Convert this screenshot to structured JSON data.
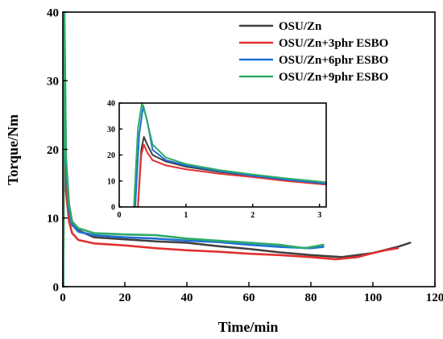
{
  "chart_data": {
    "type": "line",
    "title": "",
    "xlabel": "Time/min",
    "ylabel": "Torque/Nm",
    "xlim": [
      0,
      120
    ],
    "ylim": [
      0,
      40
    ],
    "xticks": [
      0,
      20,
      40,
      60,
      80,
      100,
      120
    ],
    "yticks": [
      0,
      10,
      20,
      30,
      40
    ],
    "legend_position": "top-right",
    "series": [
      {
        "name": "OSU/Zn",
        "color": "#404040",
        "points": [
          [
            0.15,
            0
          ],
          [
            0.3,
            18
          ],
          [
            0.5,
            20
          ],
          [
            1,
            15
          ],
          [
            2,
            11
          ],
          [
            3,
            9
          ],
          [
            5,
            8.2
          ],
          [
            10,
            7.2
          ],
          [
            20,
            6.9
          ],
          [
            30,
            6.6
          ],
          [
            40,
            6.4
          ],
          [
            50,
            5.9
          ],
          [
            60,
            5.5
          ],
          [
            70,
            5.0
          ],
          [
            80,
            4.6
          ],
          [
            90,
            4.3
          ],
          [
            100,
            4.9
          ],
          [
            108,
            5.8
          ],
          [
            112,
            6.4
          ]
        ]
      },
      {
        "name": "OSU/Zn+3phr ESBO",
        "color": "#e03030",
        "points": [
          [
            0.15,
            0
          ],
          [
            0.3,
            16
          ],
          [
            0.5,
            19
          ],
          [
            1,
            14
          ],
          [
            2,
            9.5
          ],
          [
            3,
            7.8
          ],
          [
            5,
            6.8
          ],
          [
            10,
            6.3
          ],
          [
            20,
            6.0
          ],
          [
            30,
            5.6
          ],
          [
            40,
            5.3
          ],
          [
            50,
            5.1
          ],
          [
            60,
            4.8
          ],
          [
            70,
            4.6
          ],
          [
            80,
            4.3
          ],
          [
            88,
            4.0
          ],
          [
            95,
            4.3
          ],
          [
            100,
            4.9
          ],
          [
            104,
            5.3
          ],
          [
            108,
            5.6
          ]
        ]
      },
      {
        "name": "OSU/Zn+6phr ESBO",
        "color": "#1f6fd6",
        "points": [
          [
            0.15,
            0
          ],
          [
            0.3,
            22
          ],
          [
            0.5,
            38
          ],
          [
            1,
            18
          ],
          [
            2,
            11
          ],
          [
            3,
            9
          ],
          [
            5,
            8
          ],
          [
            10,
            7.5
          ],
          [
            20,
            7.2
          ],
          [
            30,
            7.0
          ],
          [
            40,
            6.7
          ],
          [
            50,
            6.5
          ],
          [
            60,
            6.1
          ],
          [
            70,
            5.8
          ],
          [
            80,
            5.6
          ],
          [
            84,
            5.8
          ]
        ]
      },
      {
        "name": "OSU/Zn+9phr ESBO",
        "color": "#2eaa66",
        "points": [
          [
            0.15,
            0
          ],
          [
            0.3,
            25
          ],
          [
            0.5,
            40
          ],
          [
            1,
            19
          ],
          [
            2,
            12
          ],
          [
            3,
            9.5
          ],
          [
            5,
            8.5
          ],
          [
            10,
            7.8
          ],
          [
            20,
            7.6
          ],
          [
            30,
            7.5
          ],
          [
            40,
            7.0
          ],
          [
            50,
            6.7
          ],
          [
            60,
            6.4
          ],
          [
            70,
            6.1
          ],
          [
            78,
            5.6
          ],
          [
            84,
            6.1
          ]
        ]
      }
    ],
    "inset": {
      "xlim": [
        0,
        3.1
      ],
      "ylim": [
        0,
        40
      ],
      "xticks": [
        0,
        1,
        2,
        3
      ],
      "yticks": [
        0,
        10,
        20,
        30,
        40
      ],
      "series": [
        {
          "name": "OSU/Zn",
          "color": "#404040",
          "points": [
            [
              0.28,
              0
            ],
            [
              0.33,
              22
            ],
            [
              0.37,
              27
            ],
            [
              0.42,
              24
            ],
            [
              0.5,
              20
            ],
            [
              0.7,
              17.5
            ],
            [
              1,
              15.5
            ],
            [
              1.5,
              13.5
            ],
            [
              2,
              12
            ],
            [
              2.5,
              10.5
            ],
            [
              3.1,
              9
            ]
          ]
        },
        {
          "name": "OSU/Zn+3phr ESBO",
          "color": "#e03030",
          "points": [
            [
              0.28,
              0
            ],
            [
              0.33,
              20
            ],
            [
              0.37,
              24
            ],
            [
              0.42,
              21
            ],
            [
              0.5,
              18
            ],
            [
              0.7,
              16
            ],
            [
              1,
              14.5
            ],
            [
              1.5,
              12.8
            ],
            [
              2,
              11.5
            ],
            [
              2.5,
              10
            ],
            [
              3.1,
              8.6
            ]
          ]
        },
        {
          "name": "OSU/Zn+6phr ESBO",
          "color": "#1f6fd6",
          "points": [
            [
              0.24,
              0
            ],
            [
              0.3,
              28
            ],
            [
              0.36,
              39
            ],
            [
              0.42,
              33
            ],
            [
              0.5,
              22
            ],
            [
              0.7,
              18
            ],
            [
              1,
              16
            ],
            [
              1.5,
              13.8
            ],
            [
              2,
              12
            ],
            [
              2.5,
              10.5
            ],
            [
              3.1,
              9
            ]
          ]
        },
        {
          "name": "OSU/Zn+9phr ESBO",
          "color": "#2eaa66",
          "points": [
            [
              0.22,
              0
            ],
            [
              0.28,
              30
            ],
            [
              0.34,
              40
            ],
            [
              0.4,
              35
            ],
            [
              0.5,
              24
            ],
            [
              0.7,
              19
            ],
            [
              1,
              16.5
            ],
            [
              1.5,
              14.2
            ],
            [
              2,
              12.5
            ],
            [
              2.5,
              11
            ],
            [
              3.1,
              9.5
            ]
          ]
        }
      ]
    }
  }
}
